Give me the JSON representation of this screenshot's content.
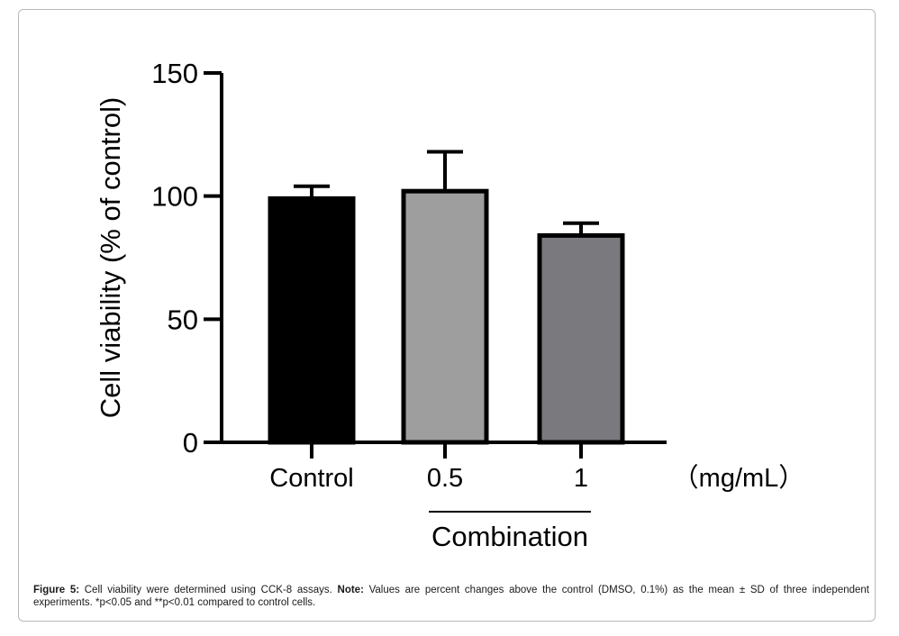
{
  "chart_data": {
    "type": "bar",
    "categories": [
      "Control",
      "0.5",
      "1"
    ],
    "values": [
      99,
      102,
      84
    ],
    "errors": [
      5,
      16,
      5
    ],
    "bar_colors": [
      "#000000",
      "#9e9e9e",
      "#7a7a7e"
    ],
    "ylabel": "Cell viability (% of control)",
    "ylim": [
      0,
      150
    ],
    "yticks": [
      "0",
      "50",
      "100",
      "150"
    ],
    "unit_label": "（mg/mL）",
    "group_label": "Combination",
    "grid": false
  },
  "caption": {
    "label": "Figure 5:",
    "text1": "Cell viability were determined using CCK-8 assays.",
    "note_label": "Note:",
    "text2": "Values are percent changes above the control (DMSO, 0.1%) as the mean ± SD of three independent experiments. *p<0.05 and **p<0.01 compared to control cells."
  }
}
